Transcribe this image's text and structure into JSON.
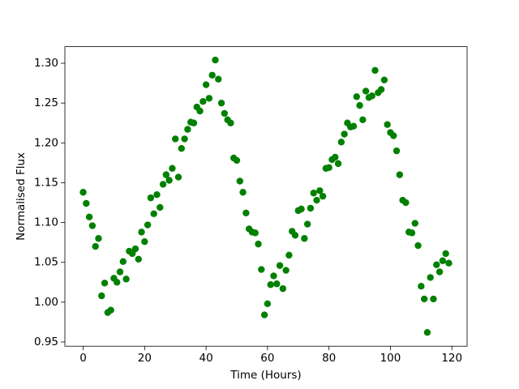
{
  "chart_data": {
    "type": "scatter",
    "x_label": "Time (Hours)",
    "y_label": "Normalised Flux",
    "color": "#008000",
    "x": [
      0,
      1,
      2,
      3,
      4,
      5,
      6,
      7,
      8,
      9,
      10,
      11,
      12,
      13,
      14,
      15,
      16,
      17,
      18,
      19,
      20,
      21,
      22,
      23,
      24,
      25,
      26,
      27,
      28,
      29,
      30,
      31,
      32,
      33,
      34,
      35,
      36,
      37,
      38,
      39,
      40,
      41,
      42,
      43,
      44,
      45,
      46,
      47,
      48,
      49,
      50,
      51,
      52,
      53,
      54,
      55,
      56,
      57,
      58,
      59,
      60,
      61,
      62,
      63,
      64,
      65,
      66,
      67,
      68,
      69,
      70,
      71,
      72,
      73,
      74,
      75,
      76,
      77,
      78,
      79,
      80,
      81,
      82,
      83,
      84,
      85,
      86,
      87,
      88,
      89,
      90,
      91,
      92,
      93,
      94,
      95,
      96,
      97,
      98,
      99,
      100,
      101,
      102,
      103,
      104,
      105,
      106,
      107,
      108,
      109,
      110,
      111,
      112,
      113,
      114,
      115,
      116,
      117,
      118,
      119
    ],
    "values": [
      1.138,
      1.124,
      1.107,
      1.096,
      1.07,
      1.08,
      1.008,
      1.024,
      0.987,
      0.99,
      1.03,
      1.025,
      1.038,
      1.051,
      1.029,
      1.064,
      1.061,
      1.067,
      1.054,
      1.088,
      1.076,
      1.097,
      1.131,
      1.111,
      1.135,
      1.119,
      1.148,
      1.16,
      1.153,
      1.168,
      1.205,
      1.157,
      1.193,
      1.205,
      1.217,
      1.226,
      1.225,
      1.245,
      1.24,
      1.252,
      1.273,
      1.256,
      1.285,
      1.304,
      1.28,
      1.25,
      1.237,
      1.229,
      1.225,
      1.181,
      1.178,
      1.152,
      1.138,
      1.112,
      1.092,
      1.088,
      1.087,
      1.073,
      1.041,
      0.984,
      0.998,
      1.022,
      1.033,
      1.023,
      1.046,
      1.017,
      1.04,
      1.059,
      1.089,
      1.084,
      1.115,
      1.117,
      1.08,
      1.098,
      1.118,
      1.137,
      1.128,
      1.14,
      1.133,
      1.168,
      1.169,
      1.179,
      1.182,
      1.174,
      1.201,
      1.211,
      1.225,
      1.22,
      1.221,
      1.258,
      1.247,
      1.229,
      1.265,
      1.257,
      1.259,
      1.291,
      1.263,
      1.267,
      1.279,
      1.223,
      1.213,
      1.209,
      1.19,
      1.16,
      1.128,
      1.125,
      1.088,
      1.087,
      1.099,
      1.071,
      1.02,
      1.004,
      0.962,
      1.031,
      1.004,
      1.047,
      1.038,
      1.052,
      1.061,
      1.049
    ],
    "xlim": [
      -5.95,
      124.95
    ],
    "xticks": [
      0,
      20,
      40,
      60,
      80,
      100,
      120
    ],
    "ylim": [
      0.9447,
      1.3208
    ],
    "yticks": [
      0.95,
      {
        "value": 1.0,
        "label": "1.00"
      },
      1.05,
      {
        "value": 1.1,
        "label": "1.10"
      },
      1.15,
      {
        "value": 1.2,
        "label": "1.20"
      },
      1.25,
      {
        "value": 1.3,
        "label": "1.30"
      }
    ]
  }
}
